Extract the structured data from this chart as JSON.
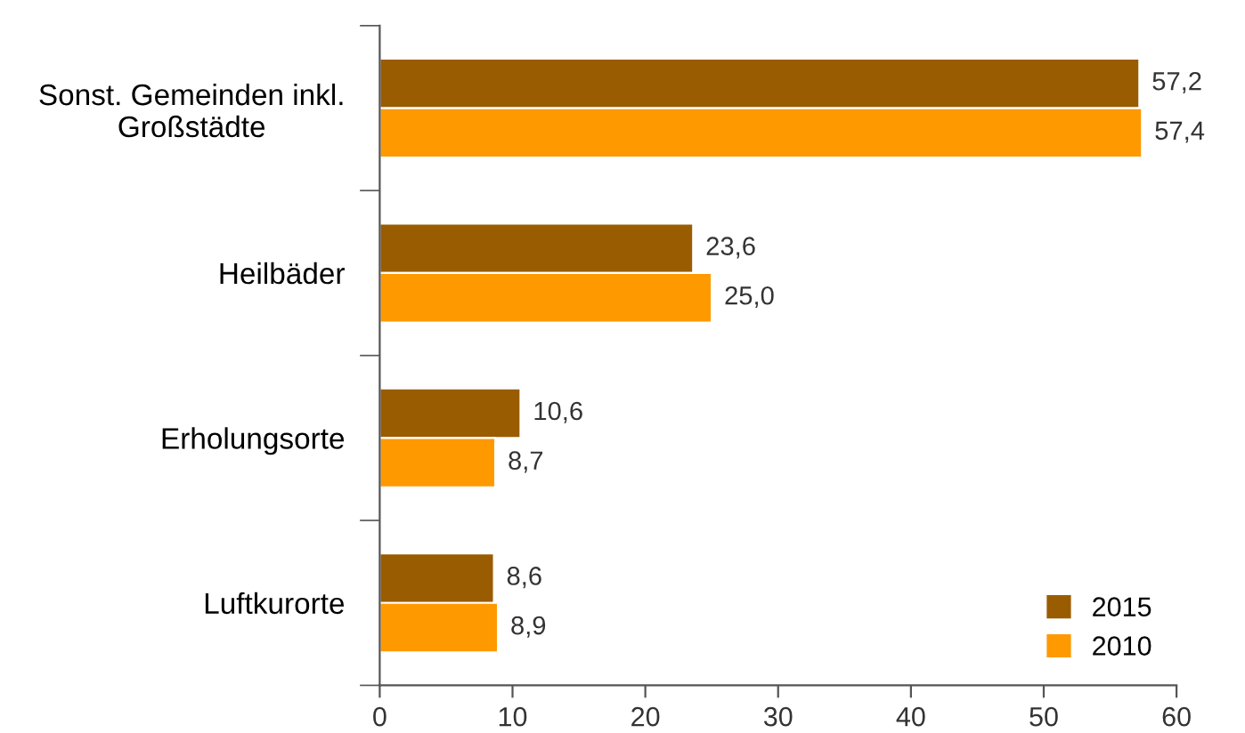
{
  "chart_data": {
    "type": "bar",
    "orientation": "horizontal",
    "categories": [
      "Sonst. Gemeinden inkl.\nGroßstädte",
      "Heilbäder",
      "Erholungsorte",
      "Luftkurorte"
    ],
    "series": [
      {
        "name": "2015",
        "color": "#9a5c00",
        "values": [
          57.2,
          23.6,
          10.6,
          8.6
        ],
        "value_labels": [
          "57,2",
          "23,6",
          "10,6",
          "8,6"
        ]
      },
      {
        "name": "2010",
        "color": "#ff9900",
        "values": [
          57.4,
          25.0,
          8.7,
          8.9
        ],
        "value_labels": [
          "57,4",
          "25,0",
          "8,7",
          "8,9"
        ]
      }
    ],
    "xlim": [
      0,
      60
    ],
    "xticks": [
      0,
      10,
      20,
      30,
      40,
      50,
      60
    ],
    "grid": false,
    "legend": "bottom right"
  }
}
